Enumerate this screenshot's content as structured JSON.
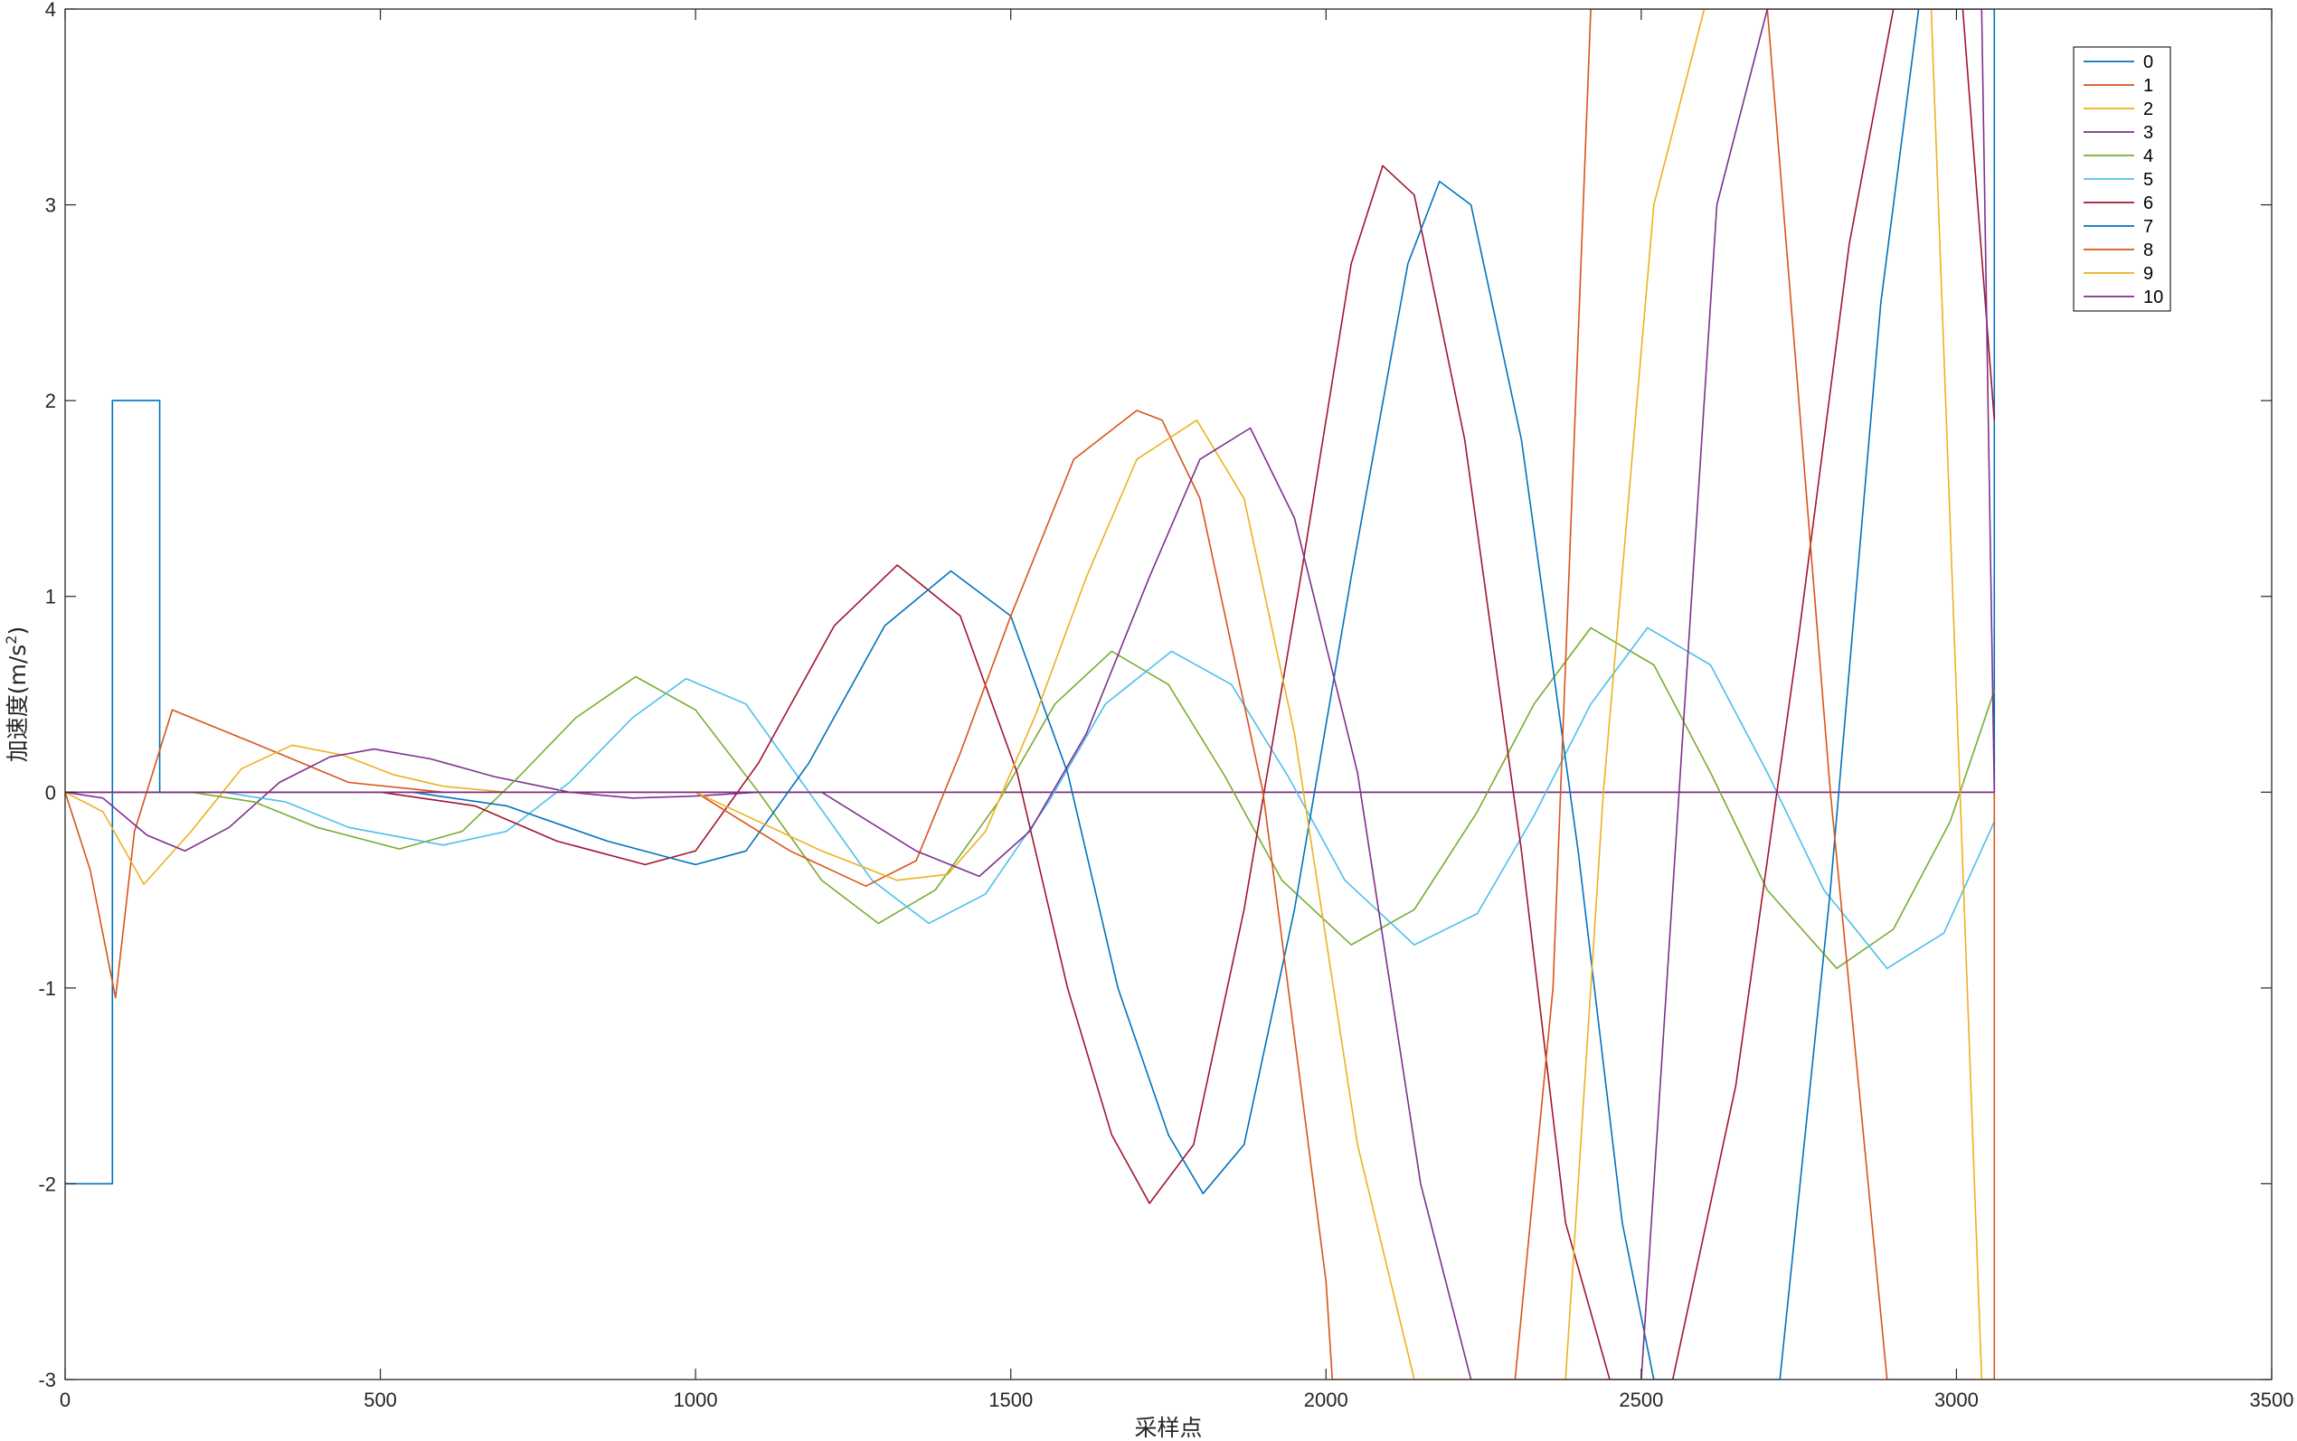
{
  "chart_data": {
    "type": "line",
    "title": "",
    "xlabel": "采样点",
    "ylabel_main": "加速度(m/s",
    "ylabel_sup": "2",
    "ylabel_close": ")",
    "xlim": [
      0,
      3500
    ],
    "ylim": [
      -3,
      4
    ],
    "xticks": [
      0,
      500,
      1000,
      1500,
      2000,
      2500,
      3000,
      3500
    ],
    "yticks": [
      -3,
      -2,
      -1,
      0,
      1,
      2,
      3,
      4
    ],
    "xtick_labels": [
      "0",
      "500",
      "1000",
      "1500",
      "2000",
      "2500",
      "3000",
      "3500"
    ],
    "ytick_labels": [
      "-3",
      "-2",
      "-1",
      "0",
      "1",
      "2",
      "3",
      "4"
    ],
    "grid": false,
    "legend_position": "top-right",
    "series": [
      {
        "name": "0",
        "color": "#0072BD",
        "x": [
          0,
          75,
          75,
          150,
          150,
          3060,
          3060,
          3060
        ],
        "y": [
          -2,
          -2,
          2,
          2,
          0,
          0,
          4,
          0
        ]
      },
      {
        "name": "1",
        "color": "#D95319",
        "x": [
          0,
          40,
          80,
          110,
          170,
          300,
          450,
          600,
          800,
          1000,
          1200,
          1500,
          3060
        ],
        "y": [
          0,
          -0.4,
          -1.05,
          -0.2,
          0.42,
          0.25,
          0.05,
          0,
          0,
          0,
          0,
          0,
          0
        ]
      },
      {
        "name": "2",
        "color": "#EDB120",
        "x": [
          0,
          60,
          125,
          200,
          280,
          360,
          440,
          520,
          600,
          700,
          800,
          900,
          1000,
          1200,
          1500,
          3060
        ],
        "y": [
          0,
          -0.1,
          -0.47,
          -0.2,
          0.12,
          0.24,
          0.19,
          0.09,
          0.03,
          0,
          0,
          0,
          0,
          0,
          0,
          0
        ]
      },
      {
        "name": "3",
        "color": "#7E2F8E",
        "x": [
          0,
          60,
          130,
          190,
          260,
          340,
          420,
          490,
          580,
          680,
          800,
          900,
          1000,
          1100,
          1200,
          1300,
          1500,
          3060
        ],
        "y": [
          0,
          -0.03,
          -0.22,
          -0.3,
          -0.18,
          0.05,
          0.18,
          0.22,
          0.17,
          0.08,
          0,
          -0.03,
          -0.02,
          0,
          0,
          0,
          0,
          0
        ]
      },
      {
        "name": "4",
        "color": "#77AC30",
        "x": [
          0,
          200,
          300,
          400,
          530,
          630,
          720,
          810,
          905,
          1000,
          1100,
          1200,
          1290,
          1380,
          1480,
          1570,
          1660,
          1750,
          1840,
          1930,
          2040,
          2140,
          2240,
          2330,
          2420,
          2520,
          2610,
          2700,
          2810,
          2900,
          2990,
          3060
        ],
        "y": [
          0,
          0,
          -0.05,
          -0.18,
          -0.29,
          -0.2,
          0.08,
          0.38,
          0.59,
          0.42,
          0,
          -0.45,
          -0.67,
          -0.5,
          -0.05,
          0.45,
          0.72,
          0.55,
          0.08,
          -0.45,
          -0.78,
          -0.6,
          -0.1,
          0.45,
          0.84,
          0.65,
          0.1,
          -0.5,
          -0.9,
          -0.7,
          -0.15,
          0.52
        ]
      },
      {
        "name": "5",
        "color": "#4DBEEE",
        "x": [
          0,
          250,
          350,
          450,
          600,
          700,
          800,
          900,
          985,
          1080,
          1180,
          1280,
          1370,
          1460,
          1560,
          1650,
          1755,
          1850,
          1940,
          2030,
          2140,
          2240,
          2330,
          2420,
          2510,
          2610,
          2700,
          2790,
          2890,
          2980,
          3060
        ],
        "y": [
          0,
          0,
          -0.05,
          -0.18,
          -0.27,
          -0.2,
          0.05,
          0.38,
          0.58,
          0.45,
          0,
          -0.45,
          -0.67,
          -0.52,
          -0.05,
          0.45,
          0.72,
          0.55,
          0.08,
          -0.45,
          -0.78,
          -0.62,
          -0.12,
          0.45,
          0.84,
          0.65,
          0.1,
          -0.5,
          -0.9,
          -0.72,
          -0.15
        ]
      },
      {
        "name": "6",
        "color": "#A2142F",
        "x": [
          0,
          500,
          650,
          780,
          920,
          1000,
          1100,
          1220,
          1320,
          1420,
          1510,
          1590,
          1660,
          1720,
          1790,
          1870,
          1960,
          2040,
          2090,
          2140,
          2220,
          2310,
          2380,
          2450,
          2550,
          2650,
          2750,
          2830,
          2900,
          2960,
          3010,
          3060
        ],
        "y": [
          0,
          0,
          -0.07,
          -0.25,
          -0.37,
          -0.3,
          0.15,
          0.85,
          1.16,
          0.9,
          0.1,
          -1.0,
          -1.75,
          -2.1,
          -1.8,
          -0.6,
          1.1,
          2.7,
          3.2,
          3.05,
          1.8,
          -0.3,
          -2.2,
          -3,
          -3,
          -1.5,
          0.8,
          2.8,
          4,
          4,
          4,
          1.9
        ]
      },
      {
        "name": "7",
        "color": "#0072BD",
        "x": [
          0,
          550,
          700,
          860,
          1000,
          1080,
          1180,
          1300,
          1405,
          1500,
          1590,
          1670,
          1750,
          1805,
          1870,
          1950,
          2040,
          2130,
          2180,
          2230,
          2310,
          2400,
          2470,
          2520,
          2600,
          2700,
          2720,
          2800,
          2880,
          2940,
          3000,
          3060
        ],
        "y": [
          0,
          0,
          -0.07,
          -0.25,
          -0.37,
          -0.3,
          0.15,
          0.85,
          1.13,
          0.9,
          0.1,
          -1.0,
          -1.75,
          -2.05,
          -1.8,
          -0.6,
          1.1,
          2.7,
          3.12,
          3.0,
          1.8,
          -0.3,
          -2.2,
          -3,
          -3,
          -3,
          -3,
          -0.5,
          2.5,
          4,
          4,
          4
        ]
      },
      {
        "name": "8",
        "color": "#D95319",
        "x": [
          0,
          1000,
          1150,
          1270,
          1350,
          1420,
          1500,
          1600,
          1700,
          1740,
          1800,
          1900,
          2000,
          2010,
          2100,
          2200,
          2300,
          2360,
          2420,
          2500,
          2600,
          2700,
          2800,
          2890,
          3000,
          3060,
          3060
        ],
        "y": [
          0,
          0,
          -0.3,
          -0.48,
          -0.35,
          0.2,
          0.9,
          1.7,
          1.95,
          1.9,
          1.5,
          0,
          -2.5,
          -3,
          -3,
          -3,
          -3,
          -1,
          4,
          4,
          4,
          4,
          0,
          -3,
          -3,
          -3,
          0
        ]
      },
      {
        "name": "9",
        "color": "#EDB120",
        "x": [
          0,
          1000,
          1200,
          1320,
          1400,
          1460,
          1540,
          1620,
          1700,
          1795,
          1870,
          1950,
          2050,
          2140,
          2200,
          2300,
          2380,
          2440,
          2520,
          2600,
          2700,
          2800,
          2900,
          2960,
          3040,
          3060
        ],
        "y": [
          0,
          0,
          -0.3,
          -0.45,
          -0.42,
          -0.2,
          0.4,
          1.1,
          1.7,
          1.9,
          1.5,
          0.3,
          -1.8,
          -3,
          -3,
          -3,
          -3,
          0,
          3,
          4,
          4,
          4,
          4,
          4,
          -3,
          -3
        ]
      },
      {
        "name": "10",
        "color": "#7E2F8E",
        "x": [
          0,
          1200,
          1350,
          1450,
          1530,
          1620,
          1720,
          1800,
          1880,
          1950,
          2050,
          2150,
          2230,
          2300,
          2400,
          2500,
          2560,
          2620,
          2700,
          2800,
          2900,
          2980,
          3040,
          3060
        ],
        "y": [
          0,
          0,
          -0.3,
          -0.43,
          -0.2,
          0.3,
          1.1,
          1.7,
          1.86,
          1.4,
          0.1,
          -2.0,
          -3,
          -3,
          -3,
          -3,
          0,
          3,
          4,
          4,
          4,
          4,
          4,
          0
        ]
      }
    ]
  }
}
